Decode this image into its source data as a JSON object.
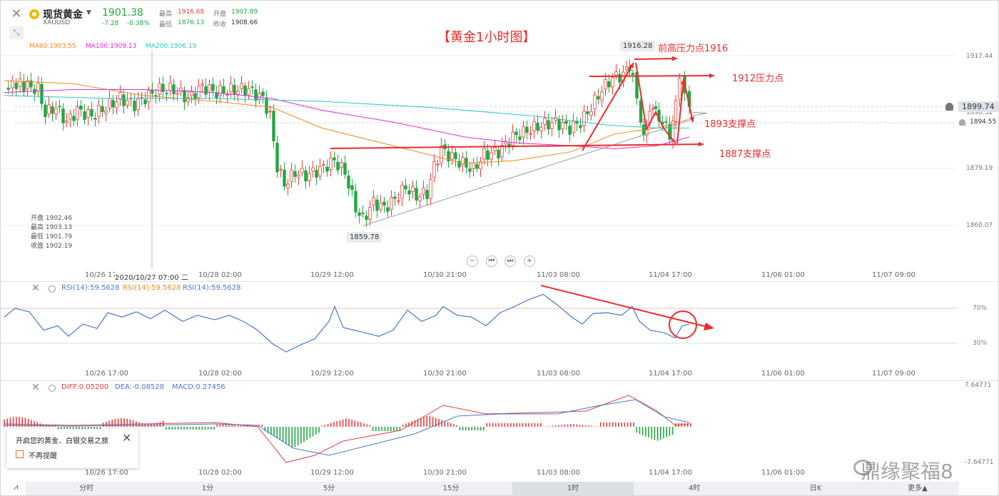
{
  "header": {
    "close_icon": "close-icon",
    "expand_icon": "expand-icon",
    "coin_icon": "gold-coin-icon",
    "symbol_name": "现货黄金",
    "symbol_code": "XAUUSD",
    "price": "1901.38",
    "change": "-7.28",
    "change_pct": "-0.38%",
    "high_label": "最高",
    "high_value": "1916.68",
    "low_label": "最低",
    "low_value": "1876.13",
    "open_label": "开盘",
    "open_value": "1907.89",
    "prev_close_label": "昨收",
    "prev_close_value": "1908.66"
  },
  "ma_legend": {
    "ma60": "MA60:1903.55",
    "ma100": "MA100:1909.13",
    "ma200": "MA200:1906.19"
  },
  "annotations": {
    "title": "【黄金1小时图】",
    "peak_resistance": "前高压力点1916",
    "resistance_1912": "1912压力点",
    "support_1893": "1893支撑点",
    "support_1887": "1887支撑点",
    "high_tag": "1916.28",
    "low_tag": "1859.78"
  },
  "ohlc_panel": {
    "open": "开盘 1902.46",
    "high": "最高 1903.13",
    "low": "最低 1901.79",
    "close": "收盘 1902.19"
  },
  "price_axis": {
    "ticks": [
      "1917.44",
      "1898.32",
      "1879.19",
      "1860.07"
    ],
    "current_tag": "1899.74",
    "alert_tag": "1894.55"
  },
  "date_axis": {
    "main": [
      "10/26 17",
      "2020/10/27 07:00 二",
      "10/28 02:00",
      "10/29 12:00",
      "10/30 21:00",
      "11/03 08:00",
      "11/04 17:00",
      "11/06 01:00",
      "11/07 09:00"
    ],
    "sub": [
      "10/26 17:00",
      "10/28 02:00",
      "10/29 12:00",
      "10/30 21:00",
      "11/03 08:00",
      "11/04 17:00",
      "11/06 01:00",
      "11/07 09:00"
    ]
  },
  "rsi": {
    "label1": "RSI(14):59.5628",
    "label2": "RSI(14):59.5628",
    "label3": "RSI(14):59.5628",
    "level_high": "70%",
    "level_low": "30%"
  },
  "macd": {
    "diff": "DIFF:0.05200",
    "dea": "DEA:-0.08528",
    "macd": "MACD:0.27456",
    "axis_top": "7.64771",
    "axis_bottom": "-7.64771"
  },
  "popup": {
    "title": "开启您的黄金、白银交易之旅",
    "checkbox_label": "不再提醒"
  },
  "tabs": {
    "items": [
      "分时",
      "1分",
      "5分",
      "15分",
      "1时",
      "4时",
      "日K",
      "更多▲"
    ],
    "active": "1时"
  },
  "watermark": "鼎缘聚福8",
  "colors": {
    "up": "#ee3b3b",
    "down": "#20a840",
    "ma60": "#f08a1e",
    "ma100": "#e02ad8",
    "ma200": "#27c6c6",
    "rsi": "#4a78d0",
    "annotation": "#ee2b2b"
  }
}
